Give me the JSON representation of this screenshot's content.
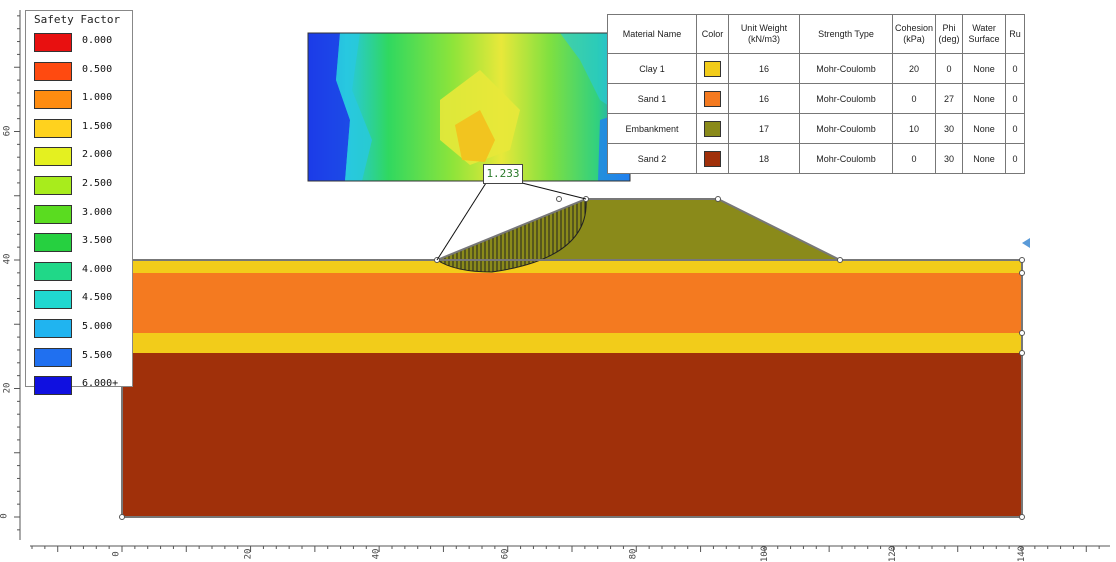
{
  "legend": {
    "title": "Safety Factor",
    "items": [
      {
        "label": "0.000",
        "color": "#e81010"
      },
      {
        "label": "0.500",
        "color": "#ff4a10"
      },
      {
        "label": "1.000",
        "color": "#ff8c10"
      },
      {
        "label": "1.500",
        "color": "#ffd21e"
      },
      {
        "label": "2.000",
        "color": "#e4f020"
      },
      {
        "label": "2.500",
        "color": "#a8ec1c"
      },
      {
        "label": "3.000",
        "color": "#5adc20"
      },
      {
        "label": "3.500",
        "color": "#26d040"
      },
      {
        "label": "4.000",
        "color": "#20d888"
      },
      {
        "label": "4.500",
        "color": "#20d8d0"
      },
      {
        "label": "5.000",
        "color": "#20b4f0"
      },
      {
        "label": "5.500",
        "color": "#2070f0"
      },
      {
        "label": "6.000+",
        "color": "#1010e0"
      }
    ]
  },
  "materials_table": {
    "headers": [
      "Material Name",
      "Color",
      "Unit Weight (kN/m3)",
      "Strength Type",
      "Cohesion (kPa)",
      "Phi (deg)",
      "Water Surface",
      "Ru"
    ],
    "rows": [
      {
        "name": "Clay 1",
        "color": "#f2cc1a",
        "unit_weight": "16",
        "strength": "Mohr-Coulomb",
        "cohesion": "20",
        "phi": "0",
        "water": "None",
        "ru": "0"
      },
      {
        "name": "Sand 1",
        "color": "#f47a20",
        "unit_weight": "16",
        "strength": "Mohr-Coulomb",
        "cohesion": "0",
        "phi": "27",
        "water": "None",
        "ru": "0"
      },
      {
        "name": "Embankment",
        "color": "#8a8a1a",
        "unit_weight": "17",
        "strength": "Mohr-Coulomb",
        "cohesion": "10",
        "phi": "30",
        "water": "None",
        "ru": "0"
      },
      {
        "name": "Sand 2",
        "color": "#a0300a",
        "unit_weight": "18",
        "strength": "Mohr-Coulomb",
        "cohesion": "0",
        "phi": "30",
        "water": "None",
        "ru": "0"
      }
    ]
  },
  "critical_surface": {
    "factor_of_safety": "1.233"
  },
  "axes": {
    "x_ticks": [
      "0",
      "20",
      "40",
      "60",
      "80",
      "100",
      "120",
      "140"
    ],
    "y_ticks": [
      "0",
      "20",
      "40",
      "60"
    ]
  }
}
